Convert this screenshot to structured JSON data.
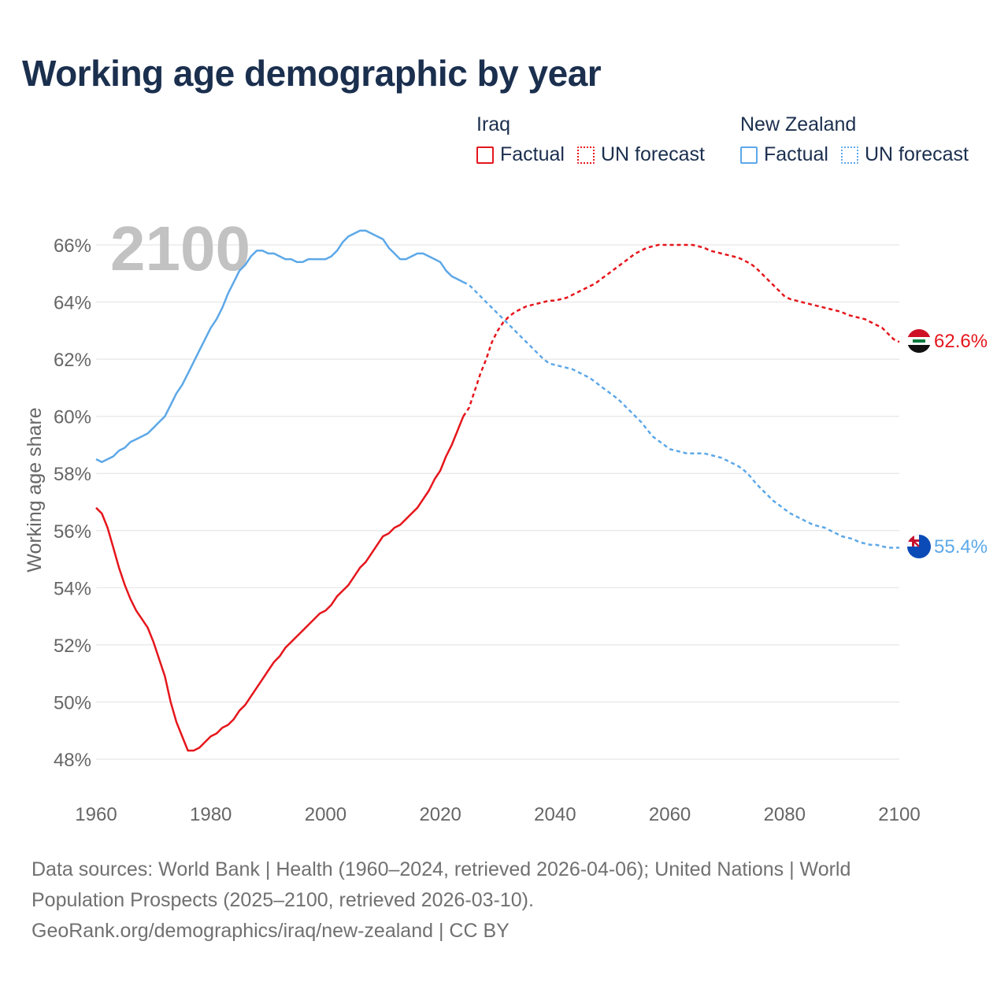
{
  "title": "Working age demographic by year",
  "legend": {
    "groups": [
      {
        "name": "Iraq",
        "color": "#e5161c",
        "factual_label": "Factual",
        "forecast_label": "UN forecast"
      },
      {
        "name": "New Zealand",
        "color": "#5da8e8",
        "factual_label": "Factual",
        "forecast_label": "UN forecast"
      }
    ]
  },
  "year_watermark": "2100",
  "end_labels": {
    "iraq": "62.6%",
    "new_zealand": "55.4%"
  },
  "icons": {
    "iraq": "iraq-flag-icon",
    "new_zealand": "new-zealand-flag-icon"
  },
  "sources": {
    "text": "Data sources: World Bank | Health (1960–2024, retrieved 2026-04-06); United Nations | World Population Prospects (2025–2100, retrieved 2026-03-10).",
    "link": "GeoRank.org/demographics/iraq/new-zealand | CC BY"
  },
  "chart_data": {
    "type": "line",
    "title": "Working age demographic by year",
    "xlabel": "",
    "ylabel": "Working age share",
    "xlim": [
      1960,
      2100
    ],
    "ylim": [
      47.5,
      66.5
    ],
    "x_ticks": [
      1960,
      1980,
      2000,
      2020,
      2040,
      2060,
      2080,
      2100
    ],
    "y_ticks": [
      48,
      50,
      52,
      54,
      56,
      58,
      60,
      62,
      64,
      66
    ],
    "y_tick_suffix": "%",
    "grid": true,
    "factual_end_year": 2024,
    "series": [
      {
        "name": "Iraq",
        "color": "#e5161c",
        "end_label": "62.6%",
        "points": [
          [
            1960,
            56.8
          ],
          [
            1961,
            56.6
          ],
          [
            1962,
            56.1
          ],
          [
            1963,
            55.4
          ],
          [
            1964,
            54.7
          ],
          [
            1965,
            54.1
          ],
          [
            1966,
            53.6
          ],
          [
            1967,
            53.2
          ],
          [
            1968,
            52.9
          ],
          [
            1969,
            52.6
          ],
          [
            1970,
            52.1
          ],
          [
            1971,
            51.5
          ],
          [
            1972,
            50.9
          ],
          [
            1973,
            50.0
          ],
          [
            1974,
            49.3
          ],
          [
            1975,
            48.8
          ],
          [
            1976,
            48.3
          ],
          [
            1977,
            48.3
          ],
          [
            1978,
            48.4
          ],
          [
            1979,
            48.6
          ],
          [
            1980,
            48.8
          ],
          [
            1981,
            48.9
          ],
          [
            1982,
            49.1
          ],
          [
            1983,
            49.2
          ],
          [
            1984,
            49.4
          ],
          [
            1985,
            49.7
          ],
          [
            1986,
            49.9
          ],
          [
            1987,
            50.2
          ],
          [
            1988,
            50.5
          ],
          [
            1989,
            50.8
          ],
          [
            1990,
            51.1
          ],
          [
            1991,
            51.4
          ],
          [
            1992,
            51.6
          ],
          [
            1993,
            51.9
          ],
          [
            1994,
            52.1
          ],
          [
            1995,
            52.3
          ],
          [
            1996,
            52.5
          ],
          [
            1997,
            52.7
          ],
          [
            1998,
            52.9
          ],
          [
            1999,
            53.1
          ],
          [
            2000,
            53.2
          ],
          [
            2001,
            53.4
          ],
          [
            2002,
            53.7
          ],
          [
            2003,
            53.9
          ],
          [
            2004,
            54.1
          ],
          [
            2005,
            54.4
          ],
          [
            2006,
            54.7
          ],
          [
            2007,
            54.9
          ],
          [
            2008,
            55.2
          ],
          [
            2009,
            55.5
          ],
          [
            2010,
            55.8
          ],
          [
            2011,
            55.9
          ],
          [
            2012,
            56.1
          ],
          [
            2013,
            56.2
          ],
          [
            2014,
            56.4
          ],
          [
            2015,
            56.6
          ],
          [
            2016,
            56.8
          ],
          [
            2017,
            57.1
          ],
          [
            2018,
            57.4
          ],
          [
            2019,
            57.8
          ],
          [
            2020,
            58.1
          ],
          [
            2021,
            58.6
          ],
          [
            2022,
            59.0
          ],
          [
            2023,
            59.5
          ],
          [
            2024,
            60.0
          ],
          [
            2025,
            60.3
          ],
          [
            2026,
            60.9
          ],
          [
            2027,
            61.5
          ],
          [
            2028,
            62.0
          ],
          [
            2029,
            62.6
          ],
          [
            2030,
            63.0
          ],
          [
            2031,
            63.3
          ],
          [
            2032,
            63.5
          ],
          [
            2033,
            63.65
          ],
          [
            2034,
            63.75
          ],
          [
            2035,
            63.85
          ],
          [
            2036,
            63.9
          ],
          [
            2037,
            63.95
          ],
          [
            2038,
            64.0
          ],
          [
            2039,
            64.05
          ],
          [
            2040,
            64.05
          ],
          [
            2041,
            64.1
          ],
          [
            2042,
            64.15
          ],
          [
            2043,
            64.25
          ],
          [
            2044,
            64.35
          ],
          [
            2045,
            64.45
          ],
          [
            2046,
            64.55
          ],
          [
            2047,
            64.65
          ],
          [
            2048,
            64.8
          ],
          [
            2049,
            64.95
          ],
          [
            2050,
            65.1
          ],
          [
            2051,
            65.25
          ],
          [
            2052,
            65.4
          ],
          [
            2053,
            65.55
          ],
          [
            2054,
            65.7
          ],
          [
            2055,
            65.8
          ],
          [
            2056,
            65.9
          ],
          [
            2057,
            65.95
          ],
          [
            2058,
            66.0
          ],
          [
            2059,
            66.0
          ],
          [
            2060,
            66.0
          ],
          [
            2061,
            66.0
          ],
          [
            2062,
            66.0
          ],
          [
            2063,
            66.0
          ],
          [
            2064,
            66.0
          ],
          [
            2065,
            65.95
          ],
          [
            2066,
            65.9
          ],
          [
            2067,
            65.8
          ],
          [
            2068,
            65.75
          ],
          [
            2069,
            65.7
          ],
          [
            2070,
            65.65
          ],
          [
            2071,
            65.6
          ],
          [
            2072,
            65.55
          ],
          [
            2073,
            65.45
          ],
          [
            2074,
            65.35
          ],
          [
            2075,
            65.2
          ],
          [
            2076,
            65.0
          ],
          [
            2077,
            64.8
          ],
          [
            2078,
            64.6
          ],
          [
            2079,
            64.4
          ],
          [
            2080,
            64.2
          ],
          [
            2081,
            64.1
          ],
          [
            2082,
            64.05
          ],
          [
            2083,
            64.0
          ],
          [
            2084,
            63.95
          ],
          [
            2085,
            63.9
          ],
          [
            2086,
            63.85
          ],
          [
            2087,
            63.8
          ],
          [
            2088,
            63.75
          ],
          [
            2089,
            63.7
          ],
          [
            2090,
            63.65
          ],
          [
            2091,
            63.55
          ],
          [
            2092,
            63.5
          ],
          [
            2093,
            63.45
          ],
          [
            2094,
            63.4
          ],
          [
            2095,
            63.3
          ],
          [
            2096,
            63.2
          ],
          [
            2097,
            63.1
          ],
          [
            2098,
            62.9
          ],
          [
            2099,
            62.7
          ],
          [
            2100,
            62.6
          ]
        ]
      },
      {
        "name": "New Zealand",
        "color": "#5da8e8",
        "end_label": "55.4%",
        "points": [
          [
            1960,
            58.5
          ],
          [
            1961,
            58.4
          ],
          [
            1962,
            58.5
          ],
          [
            1963,
            58.6
          ],
          [
            1964,
            58.8
          ],
          [
            1965,
            58.9
          ],
          [
            1966,
            59.1
          ],
          [
            1967,
            59.2
          ],
          [
            1968,
            59.3
          ],
          [
            1969,
            59.4
          ],
          [
            1970,
            59.6
          ],
          [
            1971,
            59.8
          ],
          [
            1972,
            60.0
          ],
          [
            1973,
            60.4
          ],
          [
            1974,
            60.8
          ],
          [
            1975,
            61.1
          ],
          [
            1976,
            61.5
          ],
          [
            1977,
            61.9
          ],
          [
            1978,
            62.3
          ],
          [
            1979,
            62.7
          ],
          [
            1980,
            63.1
          ],
          [
            1981,
            63.4
          ],
          [
            1982,
            63.8
          ],
          [
            1983,
            64.3
          ],
          [
            1984,
            64.7
          ],
          [
            1985,
            65.1
          ],
          [
            1986,
            65.3
          ],
          [
            1987,
            65.6
          ],
          [
            1988,
            65.8
          ],
          [
            1989,
            65.8
          ],
          [
            1990,
            65.7
          ],
          [
            1991,
            65.7
          ],
          [
            1992,
            65.6
          ],
          [
            1993,
            65.5
          ],
          [
            1994,
            65.5
          ],
          [
            1995,
            65.4
          ],
          [
            1996,
            65.4
          ],
          [
            1997,
            65.5
          ],
          [
            1998,
            65.5
          ],
          [
            1999,
            65.5
          ],
          [
            2000,
            65.5
          ],
          [
            2001,
            65.6
          ],
          [
            2002,
            65.8
          ],
          [
            2003,
            66.1
          ],
          [
            2004,
            66.3
          ],
          [
            2005,
            66.4
          ],
          [
            2006,
            66.5
          ],
          [
            2007,
            66.5
          ],
          [
            2008,
            66.4
          ],
          [
            2009,
            66.3
          ],
          [
            2010,
            66.2
          ],
          [
            2011,
            65.9
          ],
          [
            2012,
            65.7
          ],
          [
            2013,
            65.5
          ],
          [
            2014,
            65.5
          ],
          [
            2015,
            65.6
          ],
          [
            2016,
            65.7
          ],
          [
            2017,
            65.7
          ],
          [
            2018,
            65.6
          ],
          [
            2019,
            65.5
          ],
          [
            2020,
            65.4
          ],
          [
            2021,
            65.1
          ],
          [
            2022,
            64.9
          ],
          [
            2023,
            64.8
          ],
          [
            2024,
            64.7
          ],
          [
            2025,
            64.6
          ],
          [
            2026,
            64.4
          ],
          [
            2027,
            64.2
          ],
          [
            2028,
            64.0
          ],
          [
            2029,
            63.8
          ],
          [
            2030,
            63.6
          ],
          [
            2031,
            63.4
          ],
          [
            2032,
            63.2
          ],
          [
            2033,
            63.0
          ],
          [
            2034,
            62.8
          ],
          [
            2035,
            62.6
          ],
          [
            2036,
            62.4
          ],
          [
            2037,
            62.2
          ],
          [
            2038,
            62.0
          ],
          [
            2039,
            61.85
          ],
          [
            2040,
            61.8
          ],
          [
            2041,
            61.75
          ],
          [
            2042,
            61.7
          ],
          [
            2043,
            61.65
          ],
          [
            2044,
            61.55
          ],
          [
            2045,
            61.45
          ],
          [
            2046,
            61.35
          ],
          [
            2047,
            61.2
          ],
          [
            2048,
            61.05
          ],
          [
            2049,
            60.9
          ],
          [
            2050,
            60.75
          ],
          [
            2051,
            60.6
          ],
          [
            2052,
            60.4
          ],
          [
            2053,
            60.2
          ],
          [
            2054,
            60.0
          ],
          [
            2055,
            59.8
          ],
          [
            2056,
            59.55
          ],
          [
            2057,
            59.3
          ],
          [
            2058,
            59.15
          ],
          [
            2059,
            59.0
          ],
          [
            2060,
            58.85
          ],
          [
            2061,
            58.8
          ],
          [
            2062,
            58.75
          ],
          [
            2063,
            58.7
          ],
          [
            2064,
            58.7
          ],
          [
            2065,
            58.7
          ],
          [
            2066,
            58.7
          ],
          [
            2067,
            58.65
          ],
          [
            2068,
            58.6
          ],
          [
            2069,
            58.55
          ],
          [
            2070,
            58.45
          ],
          [
            2071,
            58.35
          ],
          [
            2072,
            58.25
          ],
          [
            2073,
            58.1
          ],
          [
            2074,
            57.9
          ],
          [
            2075,
            57.65
          ],
          [
            2076,
            57.45
          ],
          [
            2077,
            57.25
          ],
          [
            2078,
            57.05
          ],
          [
            2079,
            56.9
          ],
          [
            2080,
            56.75
          ],
          [
            2081,
            56.6
          ],
          [
            2082,
            56.5
          ],
          [
            2083,
            56.4
          ],
          [
            2084,
            56.3
          ],
          [
            2085,
            56.2
          ],
          [
            2086,
            56.15
          ],
          [
            2087,
            56.1
          ],
          [
            2088,
            56.0
          ],
          [
            2089,
            55.9
          ],
          [
            2090,
            55.8
          ],
          [
            2091,
            55.75
          ],
          [
            2092,
            55.7
          ],
          [
            2093,
            55.6
          ],
          [
            2094,
            55.55
          ],
          [
            2095,
            55.5
          ],
          [
            2096,
            55.5
          ],
          [
            2097,
            55.45
          ],
          [
            2098,
            55.4
          ],
          [
            2099,
            55.4
          ],
          [
            2100,
            55.4
          ]
        ]
      }
    ]
  }
}
